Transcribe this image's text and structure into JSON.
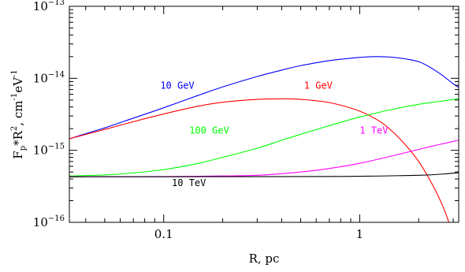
{
  "chart_data": {
    "type": "line",
    "xlabel": "R, pc",
    "ylabel": {
      "base": "F",
      "sub": "p",
      "mid": "*R",
      "sup": "2",
      "unit": ", cm",
      "unit_sup": "-1",
      "unit2": "eV",
      "unit2_sup": "-1"
    },
    "x_scale": "log",
    "y_scale": "log",
    "xlim": [
      0.033,
      3.2
    ],
    "ylim": [
      1e-16,
      1e-13
    ],
    "x_ticks": [
      {
        "value": 0.1,
        "label": "0.1"
      },
      {
        "value": 1,
        "label": "1"
      }
    ],
    "y_ticks": [
      {
        "value": 1e-16,
        "base": "10",
        "exp": "−16"
      },
      {
        "value": 1e-15,
        "base": "10",
        "exp": "−15"
      },
      {
        "value": 1e-14,
        "base": "10",
        "exp": "−14"
      },
      {
        "value": 1e-13,
        "base": "10",
        "exp": "−13"
      }
    ],
    "grid": false,
    "series": [
      {
        "name": "10 GeV",
        "color": "#0000ff",
        "label_at": [
          0.096,
          7.2e-15
        ],
        "points": [
          [
            0.033,
            1.45e-15
          ],
          [
            0.05,
            2.05e-15
          ],
          [
            0.07,
            2.8e-15
          ],
          [
            0.1,
            3.9e-15
          ],
          [
            0.15,
            5.8e-15
          ],
          [
            0.2,
            7.6e-15
          ],
          [
            0.3,
            1.06e-14
          ],
          [
            0.4,
            1.3e-14
          ],
          [
            0.5,
            1.5e-14
          ],
          [
            0.7,
            1.76e-14
          ],
          [
            1.0,
            1.95e-14
          ],
          [
            1.2,
            2e-14
          ],
          [
            1.5,
            1.95e-14
          ],
          [
            2.0,
            1.7e-14
          ],
          [
            2.5,
            1.22e-14
          ],
          [
            3.0,
            8.4e-15
          ],
          [
            3.2,
            7.5e-15
          ]
        ]
      },
      {
        "name": "1 GeV",
        "color": "#ff0000",
        "label_at": [
          0.52,
          7.2e-15
        ],
        "points": [
          [
            0.033,
            1.45e-15
          ],
          [
            0.05,
            1.95e-15
          ],
          [
            0.07,
            2.5e-15
          ],
          [
            0.1,
            3.2e-15
          ],
          [
            0.15,
            4.1e-15
          ],
          [
            0.2,
            4.65e-15
          ],
          [
            0.3,
            5.1e-15
          ],
          [
            0.4,
            5.2e-15
          ],
          [
            0.5,
            5.1e-15
          ],
          [
            0.7,
            4.6e-15
          ],
          [
            1.0,
            3.5e-15
          ],
          [
            1.3,
            2.4e-15
          ],
          [
            1.6,
            1.45e-15
          ],
          [
            2.0,
            7e-16
          ],
          [
            2.4,
            3e-16
          ],
          [
            2.7,
            1.5e-16
          ],
          [
            2.85,
            1e-16
          ]
        ]
      },
      {
        "name": "100 GeV",
        "color": "#00ff00",
        "label_at": [
          0.135,
          1.7e-15
        ],
        "points": [
          [
            0.033,
            4.4e-16
          ],
          [
            0.05,
            4.55e-16
          ],
          [
            0.07,
            4.85e-16
          ],
          [
            0.1,
            5.4e-16
          ],
          [
            0.15,
            6.6e-16
          ],
          [
            0.2,
            8e-16
          ],
          [
            0.3,
            1.07e-15
          ],
          [
            0.4,
            1.38e-15
          ],
          [
            0.5,
            1.67e-15
          ],
          [
            0.7,
            2.2e-15
          ],
          [
            1.0,
            2.9e-15
          ],
          [
            1.5,
            3.75e-15
          ],
          [
            2.0,
            4.35e-15
          ],
          [
            2.5,
            4.75e-15
          ],
          [
            3.2,
            5.2e-15
          ]
        ]
      },
      {
        "name": "1 TeV",
        "color": "#ff00ff",
        "label_at": [
          1.0,
          1.7e-15
        ],
        "points": [
          [
            0.033,
            4.3e-16
          ],
          [
            0.1,
            4.32e-16
          ],
          [
            0.2,
            4.4e-16
          ],
          [
            0.3,
            4.5e-16
          ],
          [
            0.5,
            5e-16
          ],
          [
            0.7,
            5.6e-16
          ],
          [
            1.0,
            6.6e-16
          ],
          [
            1.5,
            8.5e-16
          ],
          [
            2.0,
            1.03e-15
          ],
          [
            2.5,
            1.19e-15
          ],
          [
            3.2,
            1.38e-15
          ]
        ]
      },
      {
        "name": "10 TeV",
        "color": "#000000",
        "label_at": [
          0.11,
          3.2e-16
        ],
        "points": [
          [
            0.033,
            4.3e-16
          ],
          [
            0.1,
            4.3e-16
          ],
          [
            0.5,
            4.32e-16
          ],
          [
            1.0,
            4.36e-16
          ],
          [
            2.0,
            4.5e-16
          ],
          [
            2.7,
            4.7e-16
          ],
          [
            3.2,
            4.9e-16
          ]
        ]
      }
    ]
  }
}
